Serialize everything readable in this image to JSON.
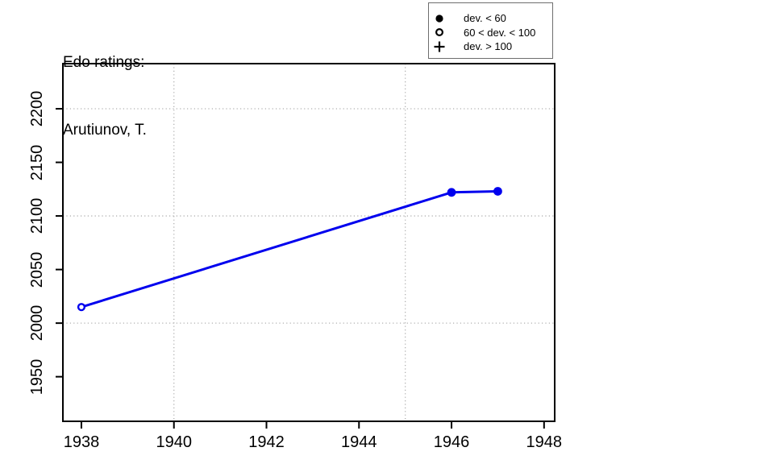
{
  "title": {
    "line1": "Edo ratings:",
    "line2": "Arutiunov, T."
  },
  "legend": {
    "items": [
      {
        "symbol": "filled-circle",
        "label": "dev. < 60"
      },
      {
        "symbol": "open-circle",
        "label": "60 < dev. < 100"
      },
      {
        "symbol": "plus",
        "label": "dev. > 100"
      }
    ]
  },
  "chart_data": {
    "type": "line",
    "title": "Edo ratings: Arutiunov, T.",
    "xlabel": "",
    "ylabel": "",
    "series": [
      {
        "name": "Edo rating",
        "points": [
          {
            "year": 1938,
            "rating": 2015,
            "symbol": "open-circle",
            "dev_class": "60 < dev. < 100"
          },
          {
            "year": 1946,
            "rating": 2122,
            "symbol": "filled-circle",
            "dev_class": "dev. < 60"
          },
          {
            "year": 1947,
            "rating": 2123,
            "symbol": "filled-circle",
            "dev_class": "dev. < 60"
          }
        ]
      }
    ],
    "x_ticks": [
      1938,
      1940,
      1942,
      1944,
      1946,
      1948
    ],
    "y_ticks": [
      1950,
      2000,
      2050,
      2100,
      2150,
      2200
    ],
    "x_gridlines": [
      1940,
      1945
    ],
    "y_gridlines": [
      2000,
      2100,
      2200
    ],
    "xlim": [
      1937.6,
      1948.23
    ],
    "ylim": [
      1908.4,
      2242.1
    ],
    "grid": "dotted",
    "legend_position": "top-right",
    "line_color": "#0000ee",
    "point_color": "#0000ee",
    "grid_color": "#b0b0b0",
    "frame_color": "#000000"
  }
}
